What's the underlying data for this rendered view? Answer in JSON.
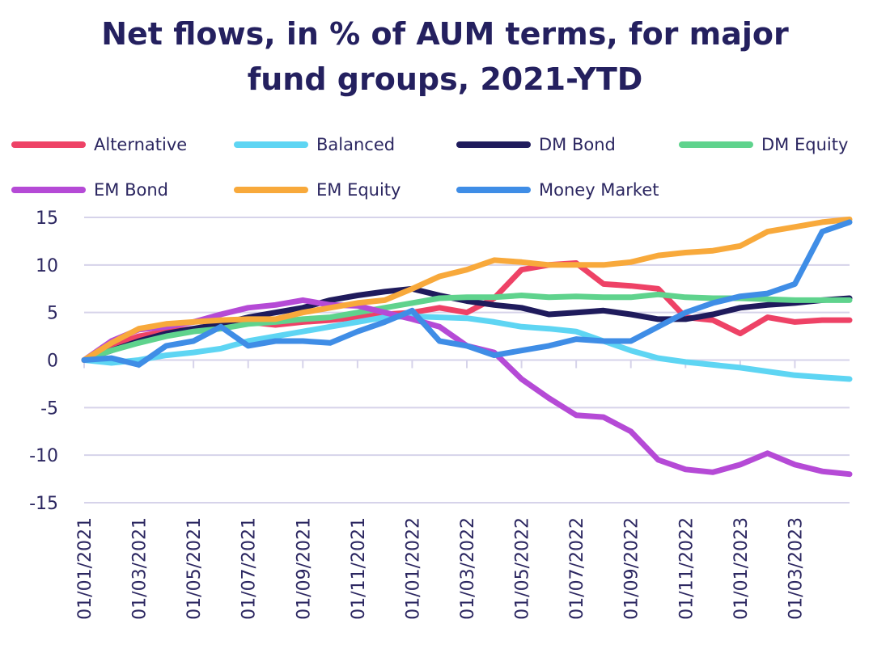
{
  "chart_data": {
    "type": "line",
    "title_lines": [
      "Net flows, in % of AUM terms, for major",
      "fund groups, 2021-YTD"
    ],
    "xlabel": "",
    "ylabel": "",
    "ylim": [
      -15,
      15
    ],
    "yticks": [
      15,
      10,
      5,
      0,
      -5,
      -10,
      -15
    ],
    "ytick_labels": [
      "15",
      "10",
      "5",
      "0",
      "-5",
      "-10",
      "-15"
    ],
    "xticks": [
      "01/01/2021",
      "01/03/2021",
      "01/05/2021",
      "01/07/2021",
      "01/09/2021",
      "01/11/2021",
      "01/01/2022",
      "01/03/2022",
      "01/05/2022",
      "01/07/2022",
      "01/09/2022",
      "01/11/2022",
      "01/01/2023",
      "01/03/2023"
    ],
    "grid": true,
    "legend_position": "top",
    "x_months": [
      0,
      1,
      2,
      3,
      4,
      5,
      6,
      7,
      8,
      9,
      10,
      11,
      12,
      13,
      14,
      15,
      16,
      17,
      18,
      19,
      20,
      21,
      22,
      23,
      24,
      25,
      26,
      27,
      28
    ],
    "series": [
      {
        "name": "Alternative",
        "color": "#ee4266",
        "values": [
          0,
          1.5,
          2.5,
          3.0,
          3.3,
          3.5,
          4.0,
          3.7,
          4.0,
          4.2,
          4.5,
          4.8,
          5.0,
          5.5,
          5.0,
          6.5,
          9.5,
          10.0,
          10.2,
          8.0,
          7.8,
          7.5,
          4.5,
          4.2,
          2.8,
          4.5,
          4.0,
          4.2,
          4.2
        ]
      },
      {
        "name": "Balanced",
        "color": "#5ed5f3",
        "values": [
          0,
          -0.3,
          0,
          0.5,
          0.8,
          1.2,
          2.0,
          2.5,
          3.0,
          3.5,
          4.0,
          4.5,
          4.6,
          4.5,
          4.4,
          4.0,
          3.5,
          3.3,
          3.0,
          2.0,
          1.0,
          0.2,
          -0.2,
          -0.5,
          -0.8,
          -1.2,
          -1.6,
          -1.8,
          -2.0
        ]
      },
      {
        "name": "DM Bond",
        "color": "#1f1b5c",
        "values": [
          0,
          1.0,
          2.0,
          2.8,
          3.3,
          3.8,
          4.5,
          5.0,
          5.5,
          6.3,
          6.8,
          7.2,
          7.5,
          6.8,
          6.2,
          5.8,
          5.5,
          4.8,
          5.0,
          5.2,
          4.8,
          4.3,
          4.3,
          4.8,
          5.5,
          5.8,
          6.0,
          6.3,
          6.5
        ]
      },
      {
        "name": "DM Equity",
        "color": "#5fd38d",
        "values": [
          0,
          1.0,
          1.8,
          2.5,
          3.0,
          3.3,
          3.8,
          4.0,
          4.3,
          4.5,
          5.0,
          5.5,
          6.0,
          6.5,
          6.6,
          6.6,
          6.8,
          6.6,
          6.7,
          6.6,
          6.6,
          6.9,
          6.6,
          6.5,
          6.5,
          6.4,
          6.3,
          6.3,
          6.3
        ]
      },
      {
        "name": "EM Bond",
        "color": "#b54ad6",
        "values": [
          0,
          2.0,
          3.2,
          3.5,
          4.0,
          4.8,
          5.5,
          5.8,
          6.3,
          5.8,
          5.7,
          5.0,
          4.3,
          3.5,
          1.5,
          0.8,
          -2.0,
          -4.0,
          -5.8,
          -6.0,
          -7.5,
          -10.5,
          -11.5,
          -11.8,
          -11.0,
          -9.8,
          -11.0,
          -11.7,
          -12.0
        ]
      },
      {
        "name": "EM Equity",
        "color": "#f8a93b",
        "values": [
          0,
          1.8,
          3.3,
          3.8,
          4.0,
          4.2,
          4.3,
          4.3,
          5.0,
          5.5,
          6.0,
          6.3,
          7.5,
          8.8,
          9.5,
          10.5,
          10.3,
          10.0,
          10.0,
          10.0,
          10.3,
          11.0,
          11.3,
          11.5,
          12.0,
          13.5,
          14.0,
          14.5,
          14.8
        ]
      },
      {
        "name": "Money Market",
        "color": "#3f8de6",
        "values": [
          0,
          0.2,
          -0.5,
          1.5,
          2.0,
          3.5,
          1.5,
          2.0,
          2.0,
          1.8,
          3.0,
          4.0,
          5.2,
          2.0,
          1.5,
          0.5,
          1.0,
          1.5,
          2.2,
          2.0,
          2.0,
          3.5,
          5.0,
          6.0,
          6.7,
          7.0,
          8.0,
          13.5,
          14.5
        ]
      }
    ]
  }
}
